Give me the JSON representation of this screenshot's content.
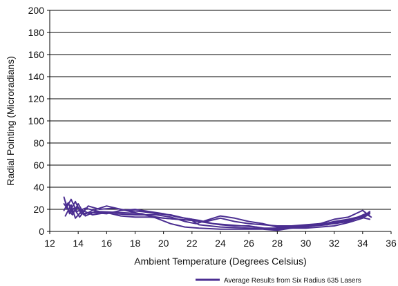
{
  "chart_data": {
    "type": "line",
    "title": "",
    "xlabel": "Ambient Temperature (Degrees Celsius)",
    "ylabel": "Radial Pointing (Microradians)",
    "xlim": [
      12,
      36
    ],
    "ylim": [
      0,
      200
    ],
    "x_ticks": [
      "12",
      "14",
      "16",
      "18",
      "20",
      "22",
      "24",
      "26",
      "28",
      "30",
      "32",
      "34",
      "36"
    ],
    "y_ticks": [
      "0",
      "20",
      "40",
      "60",
      "80",
      "100",
      "120",
      "140",
      "160",
      "180",
      "200"
    ],
    "grid": {
      "horizontal": true,
      "vertical": false
    },
    "legend_position": "bottom-right",
    "series_color": "#4b2e91",
    "series": [
      {
        "name": "Average Results from Six Radius 635 Lasers",
        "traces": [
          [
            [
              13.0,
              19
            ],
            [
              13.3,
              26
            ],
            [
              13.6,
              17
            ],
            [
              14.0,
              22
            ],
            [
              14.4,
              15
            ],
            [
              15.0,
              19
            ],
            [
              16.0,
              23
            ],
            [
              17.0,
              20
            ],
            [
              18.0,
              17
            ],
            [
              19.0,
              14
            ],
            [
              20.0,
              12
            ],
            [
              21.0,
              11
            ],
            [
              22.0,
              10
            ],
            [
              22.5,
              6
            ],
            [
              24.0,
              4
            ],
            [
              26.0,
              3
            ],
            [
              28.0,
              2
            ],
            [
              30.0,
              4
            ],
            [
              31.0,
              6
            ],
            [
              32.0,
              9
            ],
            [
              33.0,
              11
            ],
            [
              34.0,
              14
            ],
            [
              34.5,
              17
            ]
          ],
          [
            [
              13.0,
              25
            ],
            [
              13.4,
              18
            ],
            [
              13.8,
              27
            ],
            [
              14.2,
              16
            ],
            [
              15.0,
              17
            ],
            [
              16.0,
              16
            ],
            [
              17.0,
              19
            ],
            [
              18.0,
              20
            ],
            [
              19.0,
              18
            ],
            [
              20.0,
              16
            ],
            [
              21.0,
              13
            ],
            [
              22.0,
              11
            ],
            [
              22.5,
              9
            ],
            [
              23.0,
              9
            ],
            [
              24.0,
              12
            ],
            [
              25.0,
              9
            ],
            [
              26.0,
              7
            ],
            [
              27.0,
              6
            ],
            [
              28.0,
              5
            ],
            [
              29.0,
              5
            ],
            [
              30.0,
              6
            ],
            [
              31.0,
              7
            ],
            [
              32.0,
              8
            ],
            [
              33.0,
              10
            ],
            [
              34.0,
              13
            ],
            [
              34.5,
              18
            ]
          ],
          [
            [
              13.0,
              31
            ],
            [
              13.2,
              22
            ],
            [
              13.5,
              29
            ],
            [
              13.9,
              18
            ],
            [
              14.5,
              21
            ],
            [
              15.5,
              18
            ],
            [
              17.0,
              17
            ],
            [
              18.5,
              16
            ],
            [
              19.5,
              12
            ],
            [
              20.5,
              7
            ],
            [
              21.5,
              4
            ],
            [
              22.5,
              3
            ],
            [
              24.0,
              2
            ],
            [
              25.5,
              2
            ],
            [
              27.0,
              2
            ],
            [
              28.0,
              1
            ],
            [
              29.0,
              3
            ],
            [
              30.0,
              3
            ],
            [
              31.0,
              4
            ],
            [
              32.0,
              5
            ],
            [
              33.0,
              8
            ],
            [
              34.0,
              12
            ],
            [
              34.5,
              16
            ]
          ],
          [
            [
              13.1,
              14
            ],
            [
              13.5,
              24
            ],
            [
              13.8,
              12
            ],
            [
              14.3,
              19
            ],
            [
              15.0,
              15
            ],
            [
              16.0,
              17
            ],
            [
              17.0,
              14
            ],
            [
              18.0,
              13
            ],
            [
              19.0,
              13
            ],
            [
              20.0,
              12
            ],
            [
              21.0,
              11
            ],
            [
              22.0,
              10
            ],
            [
              23.0,
              8
            ],
            [
              24.0,
              6
            ],
            [
              25.0,
              5
            ],
            [
              26.0,
              5
            ],
            [
              27.0,
              3
            ],
            [
              28.0,
              3
            ],
            [
              29.0,
              4
            ],
            [
              30.0,
              5
            ],
            [
              31.0,
              6
            ],
            [
              32.0,
              7
            ],
            [
              33.0,
              9
            ],
            [
              33.8,
              13
            ],
            [
              34.5,
              11
            ]
          ],
          [
            [
              13.2,
              21
            ],
            [
              13.6,
              15
            ],
            [
              14.0,
              25
            ],
            [
              14.5,
              14
            ],
            [
              15.2,
              18
            ],
            [
              16.5,
              16
            ],
            [
              18.0,
              15
            ],
            [
              19.5,
              15
            ],
            [
              20.5,
              13
            ],
            [
              21.5,
              9
            ],
            [
              22.3,
              7
            ],
            [
              23.0,
              10
            ],
            [
              24.0,
              14
            ],
            [
              25.0,
              12
            ],
            [
              26.0,
              9
            ],
            [
              27.0,
              7
            ],
            [
              28.0,
              4
            ],
            [
              29.0,
              4
            ],
            [
              30.0,
              5
            ],
            [
              31.0,
              7
            ],
            [
              32.0,
              11
            ],
            [
              33.0,
              13
            ],
            [
              34.0,
              19
            ],
            [
              34.5,
              14
            ]
          ],
          [
            [
              13.1,
              27
            ],
            [
              13.4,
              16
            ],
            [
              13.7,
              21
            ],
            [
              14.1,
              13
            ],
            [
              14.7,
              23
            ],
            [
              15.5,
              20
            ],
            [
              16.5,
              21
            ],
            [
              17.5,
              19
            ],
            [
              18.5,
              18
            ],
            [
              19.5,
              16
            ],
            [
              20.5,
              15
            ],
            [
              21.5,
              12
            ],
            [
              22.5,
              10
            ],
            [
              23.5,
              7
            ],
            [
              24.5,
              6
            ],
            [
              25.5,
              5
            ],
            [
              26.5,
              4
            ],
            [
              27.5,
              2
            ],
            [
              28.5,
              3
            ],
            [
              29.5,
              4
            ],
            [
              30.5,
              5
            ],
            [
              31.5,
              6
            ],
            [
              32.5,
              9
            ],
            [
              33.5,
              12
            ],
            [
              34.2,
              16
            ],
            [
              34.6,
              13
            ]
          ]
        ]
      }
    ]
  }
}
